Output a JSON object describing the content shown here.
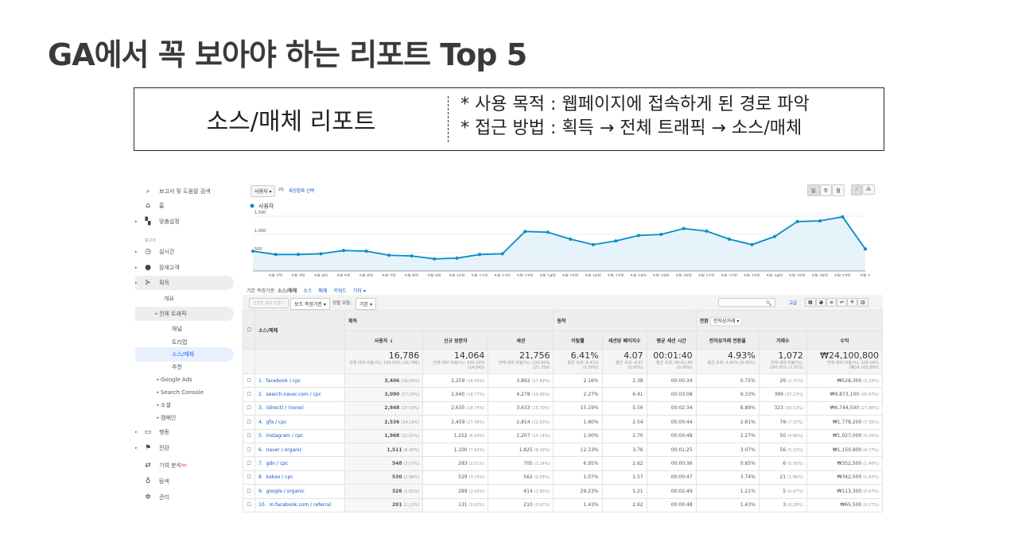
{
  "title": "GA에서 꼭 보아야 하는 리포트 Top 5",
  "box": {
    "left": "소스/매체 리포트",
    "line1": "* 사용 목적 : 웹페이지에 접속하게 된 경로 파악",
    "line2": "* 접근 방법 : 획득 → 전체 트래픽 → 소스/매체"
  },
  "sidebar": {
    "search": "보고서 및 도움말 검색",
    "items": [
      {
        "label": "홈",
        "icon": "home-icon"
      },
      {
        "label": "맞춤설정",
        "icon": "dashboard-icon"
      },
      {
        "label": "보고서",
        "icon": ""
      },
      {
        "label": "실시간",
        "icon": "clock-icon"
      },
      {
        "label": "잠재고객",
        "icon": "person-icon"
      },
      {
        "label": "획득",
        "icon": "acquisition-icon"
      },
      {
        "label": "개요"
      },
      {
        "label": "전체 트래픽"
      },
      {
        "label": "채널"
      },
      {
        "label": "트리맵"
      },
      {
        "label": "소스/매체"
      },
      {
        "label": "추천"
      },
      {
        "label": "Google Ads"
      },
      {
        "label": "Search Console"
      },
      {
        "label": "소셜"
      },
      {
        "label": "캠페인"
      },
      {
        "label": "행동",
        "icon": "behavior-icon"
      },
      {
        "label": "전환",
        "icon": "flag-icon"
      },
      {
        "label": "기여 분석",
        "badge": "베타",
        "icon": "attribution-icon"
      },
      {
        "label": "탐색",
        "icon": "bulb-icon"
      },
      {
        "label": "관리",
        "icon": "gear-icon"
      }
    ]
  },
  "toolbar": {
    "metric": "사용자",
    "vs": "VS.",
    "select_metric": "측정항목 선택",
    "periods": [
      "일",
      "주",
      "월"
    ]
  },
  "chart_data": {
    "type": "line",
    "legend": "사용자",
    "accent": "#058dc7",
    "ylim": [
      0,
      1700
    ],
    "yticks": [
      "1,500",
      "1,000",
      "500"
    ],
    "ytick_values": [
      1500,
      1000,
      500
    ],
    "categories": [
      "5월 1일",
      "5월 2일",
      "5월 3일",
      "5월 4일",
      "5월 5일",
      "5월 6일",
      "5월 7일",
      "5월 8일",
      "5월 9일",
      "5월 10일",
      "5월 11일",
      "5월 12일",
      "5월 13일",
      "5월 14일",
      "5월 15일",
      "5월 16일",
      "5월 17일",
      "5월 18일",
      "5월 19일",
      "5월 20일",
      "5월 21일",
      "5월 22일",
      "5월 23일",
      "5월 24일",
      "5월 25일",
      "5월 26일",
      "5월 27일",
      "5월 28일"
    ],
    "xtick_labels": [
      "5월 2일",
      "5월 3일",
      "5월 4일",
      "5월 5일",
      "5월 6일",
      "5월 7일",
      "5월 8일",
      "5월 9일",
      "5월 10일",
      "5월 11일",
      "5월 12일",
      "5월 13일",
      "5월 14일",
      "5월 15일",
      "5월 16일",
      "5월 17일",
      "5월 18일",
      "5월 19일",
      "5월 20일",
      "5월 21일",
      "5월 22일",
      "5월 23일",
      "5월 24일",
      "5월 25일",
      "5월 26일",
      "5월 27일",
      "5월 2"
    ],
    "values": [
      540,
      450,
      450,
      470,
      560,
      540,
      430,
      410,
      330,
      350,
      450,
      470,
      1080,
      1060,
      870,
      720,
      820,
      970,
      1000,
      1160,
      1090,
      870,
      720,
      940,
      1350,
      1370,
      1480,
      600
    ]
  },
  "dimension": {
    "label": "기본 측정기준:",
    "current": "소스/매체",
    "options": [
      "소스",
      "매체",
      "키워드",
      "기타 ▾"
    ]
  },
  "controls": {
    "make_segment": "선택한 항목 만들기",
    "secondary": "보조 측정기준 ▾",
    "sort_label": "정렬 유형:",
    "sort": "기본 ▾",
    "advanced": "고급"
  },
  "table": {
    "group_acq": "획득",
    "group_beh": "동작",
    "group_conv": "전환",
    "conv_select": "전자상거래 ▾",
    "headers": [
      "소스/매체",
      "사용자",
      "신규 방문자",
      "세션",
      "이탈률",
      "세션당 페이지수",
      "평균 세션 시간",
      "전자상거래 전환율",
      "거래수",
      "수익"
    ],
    "totals": [
      {
        "v": "16,786",
        "s": "전체 대비 비율(%): 100.00% (16,786)"
      },
      {
        "v": "14,064",
        "s": "전체 대비 비율(%): 100.14% (14,045)"
      },
      {
        "v": "21,756",
        "s": "전체 대비 비율(%): 100.00% (21,756)"
      },
      {
        "v": "6.41%",
        "s": "평균 조회: 6.41% (0.00%)"
      },
      {
        "v": "4.07",
        "s": "평균 조회: 4.07 (0.00%)"
      },
      {
        "v": "00:01:40",
        "s": "평균 조회: 00:01:40 (0.00%)"
      },
      {
        "v": "4.93%",
        "s": "평균 조회: 4.93% (0.00%)"
      },
      {
        "v": "1,072",
        "s": "전체 대비 비율(%): 100.00% (1,072)"
      },
      {
        "v": "₩24,100,800",
        "s": "전체 대비 비율(%): 100.00% (₩24,100,800)"
      }
    ],
    "rows": [
      [
        "1.",
        "facebook / cpc",
        "3,406",
        "(19.05%)",
        "2,259",
        "(16.06%)",
        "3,892",
        "(17.89%)",
        "2.16%",
        "2.38",
        "00:00:34",
        "0.75%",
        "29",
        "(2.71%)",
        "₩528,300",
        "(2.19%)"
      ],
      [
        "2.",
        "search.naver.com / cpc",
        "3,090",
        "(17.29%)",
        "2,640",
        "(18.77%)",
        "4,278",
        "(19.66%)",
        "2.27%",
        "6.41",
        "00:03:08",
        "9.33%",
        "399",
        "(37.22%)",
        "₩9,873,100",
        "(40.97%)"
      ],
      [
        "3.",
        "(direct) / (none)",
        "2,848",
        "(15.93%)",
        "2,635",
        "(18.74%)",
        "3,633",
        "(16.70%)",
        "15.19%",
        "5.56",
        "00:02:34",
        "8.89%",
        "323",
        "(30.13%)",
        "₩6,744,500",
        "(27.98%)"
      ],
      [
        "4.",
        "gfa / cpc",
        "2,536",
        "(14.19%)",
        "2,459",
        "(17.48%)",
        "2,814",
        "(12.93%)",
        "1.60%",
        "2.54",
        "00:00:44",
        "2.81%",
        "79",
        "(7.37%)",
        "₩1,778,200",
        "(7.38%)"
      ],
      [
        "5.",
        "instagram / cpc",
        "1,968",
        "(11.01%)",
        "1,252",
        "(8.90%)",
        "2,207",
        "(10.14%)",
        "1.00%",
        "2.70",
        "00:00:48",
        "2.27%",
        "50",
        "(4.66%)",
        "₩1,027,000",
        "(4.26%)"
      ],
      [
        "6.",
        "naver / organic",
        "1,511",
        "(8.45%)",
        "1,100",
        "(7.82%)",
        "1,825",
        "(8.39%)",
        "12.33%",
        "3.76",
        "00:01:25",
        "3.07%",
        "56",
        "(5.22%)",
        "₩1,150,800",
        "(4.77%)"
      ],
      [
        "7.",
        "gdn / cpc",
        "548",
        "(3.07%)",
        "283",
        "(2.01%)",
        "705",
        "(3.24%)",
        "6.95%",
        "2.62",
        "00:00:36",
        "0.85%",
        "6",
        "(0.56%)",
        "₩352,500",
        "(1.46%)"
      ],
      [
        "8.",
        "kakao / cpc",
        "530",
        "(2.96%)",
        "529",
        "(3.76%)",
        "562",
        "(2.58%)",
        "1.07%",
        "2.57",
        "00:00:47",
        "3.74%",
        "21",
        "(1.96%)",
        "₩342,500",
        "(1.42%)"
      ],
      [
        "9.",
        "google / organic",
        "326",
        "(1.82%)",
        "289",
        "(2.05%)",
        "414",
        "(1.90%)",
        "29.23%",
        "5.21",
        "00:02:49",
        "1.21%",
        "5",
        "(0.47%)",
        "₩113,300",
        "(0.47%)"
      ],
      [
        "10.",
        "m.facebook.com / referral",
        "201",
        "(1.12%)",
        "131",
        "(0.93%)",
        "210",
        "(0.97%)",
        "1.43%",
        "2.62",
        "00:00:48",
        "1.43%",
        "3",
        "(0.28%)",
        "₩65,500",
        "(0.27%)"
      ]
    ]
  }
}
